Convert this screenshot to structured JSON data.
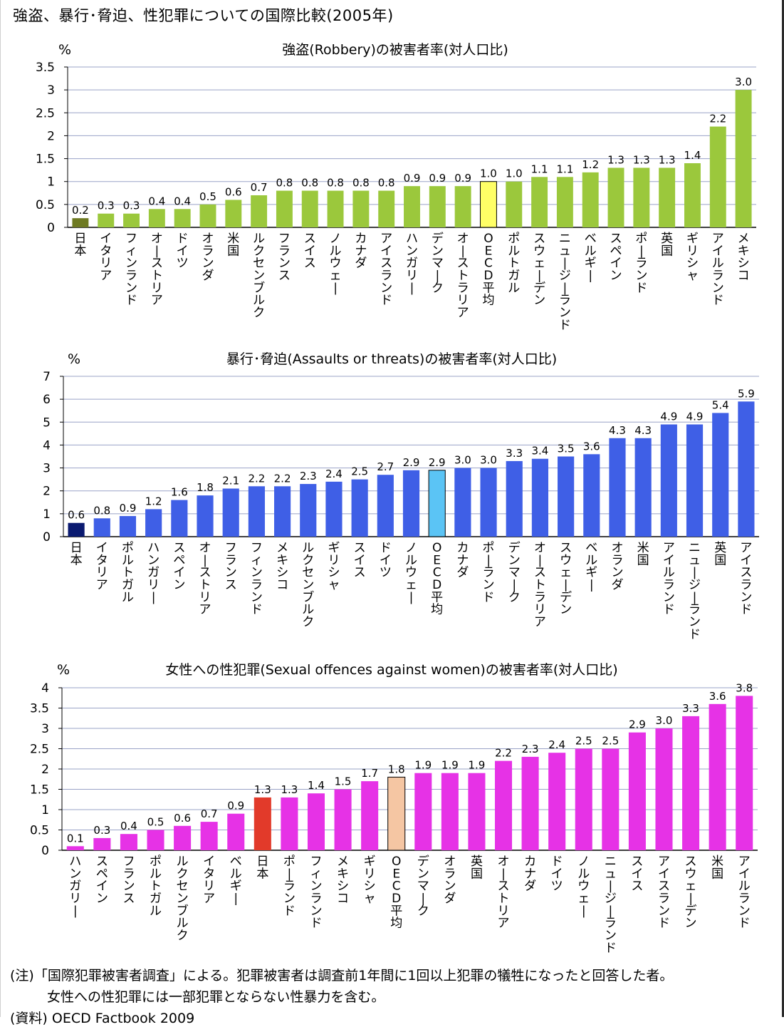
{
  "title": "強盗、暴行･脅迫、性犯罪についての国際比較(2005年)",
  "notes": {
    "line1": "(注)「国際犯罪被害者調査」による。犯罪被害者は調査前1年間に1回以上犯罪の犠牲になったと回答した者。",
    "line2": "女性への性犯罪には一部犯罪とならない性暴力を含む。",
    "line3": "(資料) OECD Factbook 2009"
  },
  "colors": {
    "robbery_bar": "#9BC83C",
    "robbery_japan": "#6E7A22",
    "robbery_oecd": "#FFFF66",
    "assault_bar": "#3F5FE6",
    "assault_japan": "#0A1A70",
    "assault_oecd": "#5BC4F5",
    "sexual_bar": "#E632E6",
    "sexual_japan": "#E23A2A",
    "sexual_oecd": "#F5C6A3"
  },
  "chart_data": [
    {
      "type": "bar",
      "title": "強盗(Robbery)の被害者率(対人口比)",
      "ylabel": "%",
      "ylim": [
        0,
        3.5
      ],
      "yticks": [
        "0",
        "0.5",
        "1",
        "1.5",
        "2",
        "2.5",
        "3",
        "3.5"
      ],
      "grid": true,
      "categories": [
        "日本",
        "イタリア",
        "フィンランド",
        "オーストリア",
        "ドイツ",
        "オランダ",
        "米国",
        "ルクセンブルク",
        "フランス",
        "スイス",
        "ノルウェー",
        "カナダ",
        "アイスランド",
        "ハンガリー",
        "デンマーク",
        "オーストラリア",
        "OECD平均",
        "ポルトガル",
        "スウェーデン",
        "ニュージーランド",
        "ベルギー",
        "スペイン",
        "ポーランド",
        "英国",
        "ギリシャ",
        "アイルランド",
        "メキシコ"
      ],
      "values": [
        0.2,
        0.3,
        0.3,
        0.4,
        0.4,
        0.5,
        0.6,
        0.7,
        0.8,
        0.8,
        0.8,
        0.8,
        0.8,
        0.9,
        0.9,
        0.9,
        1.0,
        1.0,
        1.1,
        1.1,
        1.2,
        1.3,
        1.3,
        1.3,
        1.4,
        2.2,
        3.0
      ],
      "labels": [
        "0.2",
        "0.3",
        "0.3",
        "0.4",
        "0.4",
        "0.5",
        "0.6",
        "0.7",
        "0.8",
        "0.8",
        "0.8",
        "0.8",
        "0.8",
        "0.9",
        "0.9",
        "0.9",
        "1.0",
        "1.0",
        "1.1",
        "1.1",
        "1.2",
        "1.3",
        "1.3",
        "1.3",
        "1.4",
        "2.2",
        "3.0"
      ],
      "highlight_japan": 0,
      "highlight_oecd": 16
    },
    {
      "type": "bar",
      "title": "暴行･脅迫(Assaults or threats)の被害者率(対人口比)",
      "ylabel": "%",
      "ylim": [
        0,
        7
      ],
      "yticks": [
        "0",
        "1",
        "2",
        "3",
        "4",
        "5",
        "6",
        "7"
      ],
      "grid": true,
      "categories": [
        "日本",
        "イタリア",
        "ポルトガル",
        "ハンガリー",
        "スペイン",
        "オーストリア",
        "フランス",
        "フィンランド",
        "メキシコ",
        "ルクセンブルク",
        "ギリシャ",
        "スイス",
        "ドイツ",
        "ノルウェー",
        "OECD平均",
        "カナダ",
        "ポーランド",
        "デンマーク",
        "オーストラリア",
        "スウェーデン",
        "ベルギー",
        "オランダ",
        "米国",
        "アイルランド",
        "ニュージーランド",
        "英国",
        "アイスランド"
      ],
      "values": [
        0.6,
        0.8,
        0.9,
        1.2,
        1.6,
        1.8,
        2.1,
        2.2,
        2.2,
        2.3,
        2.4,
        2.5,
        2.7,
        2.9,
        2.9,
        3.0,
        3.0,
        3.3,
        3.4,
        3.5,
        3.6,
        4.3,
        4.3,
        4.9,
        4.9,
        5.4,
        5.9
      ],
      "labels": [
        "0.6",
        "0.8",
        "0.9",
        "1.2",
        "1.6",
        "1.8",
        "2.1",
        "2.2",
        "2.2",
        "2.3",
        "2.4",
        "2.5",
        "2.7",
        "2.9",
        "2.9",
        "3.0",
        "3.0",
        "3.3",
        "3.4",
        "3.5",
        "3.6",
        "4.3",
        "4.3",
        "4.9",
        "4.9",
        "5.4",
        "5.9"
      ],
      "highlight_japan": 0,
      "highlight_oecd": 14
    },
    {
      "type": "bar",
      "title": "女性への性犯罪(Sexual offences against women)の被害者率(対人口比)",
      "ylabel": "%",
      "ylim": [
        0,
        4
      ],
      "yticks": [
        "0",
        "0.5",
        "1",
        "1.5",
        "2",
        "2.5",
        "3",
        "3.5",
        "4"
      ],
      "grid": true,
      "categories": [
        "ハンガリー",
        "スペイン",
        "フランス",
        "ポルトガル",
        "ルクセンブルク",
        "イタリア",
        "ベルギー",
        "日本",
        "ポーランド",
        "フィンランド",
        "メキシコ",
        "ギリシャ",
        "OECD平均",
        "デンマーク",
        "オランダ",
        "英国",
        "オーストリア",
        "カナダ",
        "ドイツ",
        "ノルウェー",
        "ニュージーランド",
        "スイス",
        "アイスランド",
        "スウェーデン",
        "米国",
        "アイルランド"
      ],
      "values": [
        0.1,
        0.3,
        0.4,
        0.5,
        0.6,
        0.7,
        0.9,
        1.3,
        1.3,
        1.4,
        1.5,
        1.7,
        1.8,
        1.9,
        1.9,
        1.9,
        2.2,
        2.3,
        2.4,
        2.5,
        2.5,
        2.9,
        3.0,
        3.3,
        3.6,
        3.8
      ],
      "labels": [
        "0.1",
        "0.3",
        "0.4",
        "0.5",
        "0.6",
        "0.7",
        "0.9",
        "1.3",
        "1.3",
        "1.4",
        "1.5",
        "1.7",
        "1.8",
        "1.9",
        "1.9",
        "1.9",
        "2.2",
        "2.3",
        "2.4",
        "2.5",
        "2.5",
        "2.9",
        "3.0",
        "3.3",
        "3.6",
        "3.8"
      ],
      "highlight_japan": 7,
      "highlight_oecd": 12
    }
  ]
}
